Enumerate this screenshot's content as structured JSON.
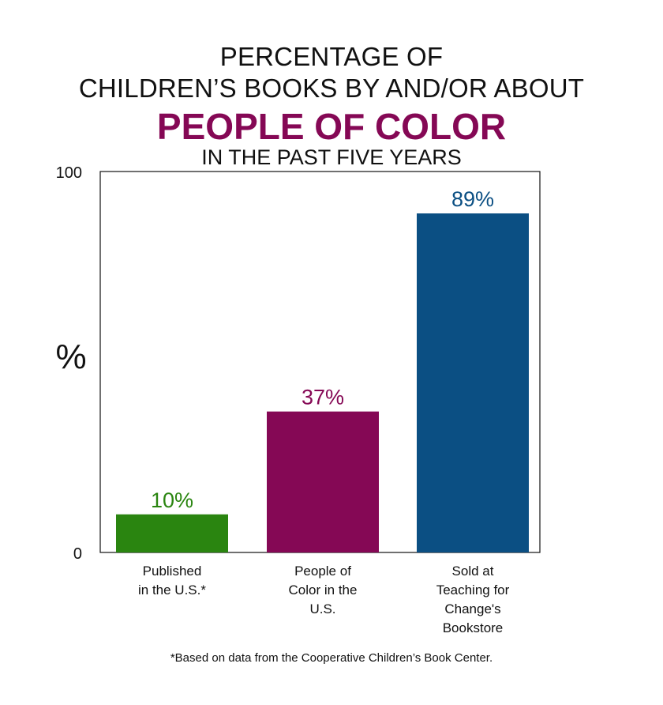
{
  "title": {
    "line1": "PERCENTAGE OF",
    "line2": "CHILDREN’S BOOKS BY AND/OR ABOUT",
    "highlight": "PEOPLE OF COLOR",
    "line4": "IN THE PAST FIVE YEARS"
  },
  "chart_data": {
    "type": "bar",
    "categories": [
      [
        "Published",
        "in the U.S.*"
      ],
      [
        "People of",
        "Color in the",
        "U.S."
      ],
      [
        "Sold at",
        "Teaching for",
        "Change's",
        "Bookstore"
      ]
    ],
    "values": [
      10,
      37,
      89
    ],
    "value_labels": [
      "10%",
      "37%",
      "89%"
    ],
    "colors": [
      "#2a8510",
      "#850855",
      "#0b4f83"
    ],
    "ylabel": "%",
    "ylim": [
      0,
      100
    ],
    "y_tick_labels": [
      "0",
      "100"
    ],
    "grid": false,
    "legend": "none"
  },
  "footnote": "*Based on data from the Cooperative Children’s Book Center.",
  "colors": {
    "highlight": "#850855",
    "axis": "#111111"
  }
}
